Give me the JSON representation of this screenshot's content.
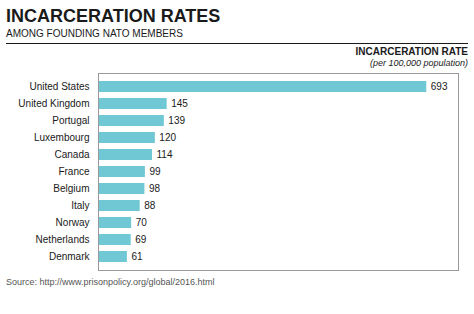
{
  "chart_data": {
    "type": "bar",
    "orientation": "horizontal",
    "title": "INCARCERATION RATES",
    "subtitle": "AMONG FOUNDING NATO MEMBERS",
    "annotations": [
      "INCARCERATION RATE",
      "(per 100,000 population)",
      "Source: http://www.prisonpolicy.org/global/2016.html"
    ],
    "categories": [
      "United States",
      "United Kingdom",
      "Portugal",
      "Luxembourg",
      "Canada",
      "France",
      "Belgium",
      "Italy",
      "Norway",
      "Netherlands",
      "Denmark"
    ],
    "values": [
      693,
      145,
      139,
      120,
      114,
      99,
      98,
      88,
      70,
      69,
      61
    ],
    "color": "#6fc8d4",
    "xlim": [
      0,
      760
    ],
    "xticks": [],
    "tick_labels": "y",
    "data_labels": true,
    "grid": false
  }
}
